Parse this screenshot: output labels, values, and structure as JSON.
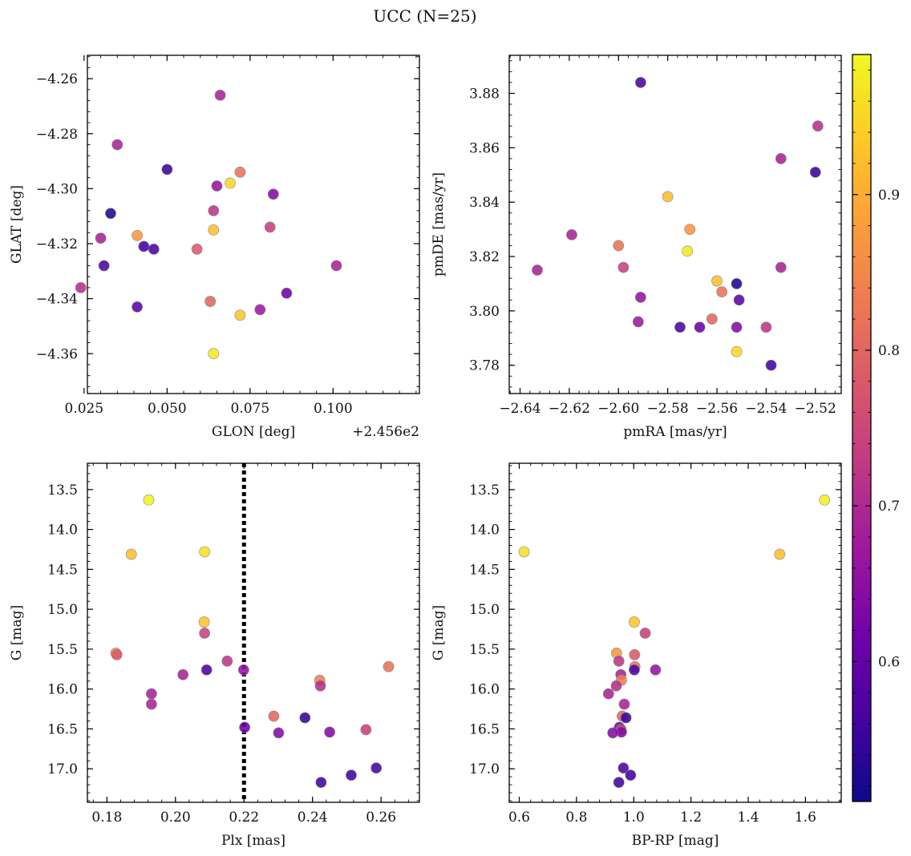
{
  "figure": {
    "title": "UCC (N=25)"
  },
  "colorbar": {
    "ticks": [
      {
        "v": 0.6,
        "label": "0.6"
      },
      {
        "v": 0.7,
        "label": "0.7"
      },
      {
        "v": 0.8,
        "label": "0.8"
      },
      {
        "v": 0.9,
        "label": "0.9"
      }
    ],
    "range": [
      0.51,
      0.99
    ]
  },
  "colors": {
    "axis": "#000000",
    "marker_edge": "#8a8a8a",
    "plx_line": "#000000",
    "cmap": [
      "#0d0887",
      "#46039f",
      "#7201a8",
      "#9c179e",
      "#bd3786",
      "#d8576b",
      "#ed7953",
      "#fb9f3a",
      "#fdca26",
      "#f0f921"
    ]
  },
  "chart_data": [
    {
      "type": "scatter",
      "name": "glon-glat",
      "xlabel": "GLON [deg]",
      "ylabel": "GLAT [deg]",
      "xlim": [
        2.456126,
        2.456226
      ],
      "ylim": [
        -4.3745,
        -4.2515
      ],
      "xticks": [
        {
          "v": 2.456125,
          "label": "0.025"
        },
        {
          "v": 2.45615,
          "label": "0.050"
        },
        {
          "v": 2.456175,
          "label": "0.075"
        },
        {
          "v": 2.4562,
          "label": "0.100"
        }
      ],
      "offset_label": "+2.456e2",
      "yticks": [
        {
          "v": -4.26,
          "label": "−4.26"
        },
        {
          "v": -4.28,
          "label": "−4.28"
        },
        {
          "v": -4.3,
          "label": "−4.30"
        },
        {
          "v": -4.32,
          "label": "−4.32"
        },
        {
          "v": -4.34,
          "label": "−4.34"
        },
        {
          "v": -4.36,
          "label": "−4.36"
        }
      ],
      "points": [
        {
          "x": 2.456166,
          "y": -4.266,
          "c": 0.69
        },
        {
          "x": 2.456135,
          "y": -4.284,
          "c": 0.69
        },
        {
          "x": 2.45615,
          "y": -4.293,
          "c": 0.55
        },
        {
          "x": 2.456172,
          "y": -4.294,
          "c": 0.82
        },
        {
          "x": 2.456169,
          "y": -4.298,
          "c": 0.95
        },
        {
          "x": 2.456165,
          "y": -4.299,
          "c": 0.66
        },
        {
          "x": 2.456182,
          "y": -4.302,
          "c": 0.64
        },
        {
          "x": 2.456164,
          "y": -4.308,
          "c": 0.72
        },
        {
          "x": 2.456133,
          "y": -4.309,
          "c": 0.53
        },
        {
          "x": 2.456164,
          "y": -4.315,
          "c": 0.92
        },
        {
          "x": 2.456181,
          "y": -4.314,
          "c": 0.74
        },
        {
          "x": 2.456141,
          "y": -4.317,
          "c": 0.87
        },
        {
          "x": 2.45613,
          "y": -4.318,
          "c": 0.69
        },
        {
          "x": 2.456143,
          "y": -4.321,
          "c": 0.56
        },
        {
          "x": 2.456146,
          "y": -4.322,
          "c": 0.57
        },
        {
          "x": 2.456159,
          "y": -4.322,
          "c": 0.78
        },
        {
          "x": 2.456201,
          "y": -4.328,
          "c": 0.69
        },
        {
          "x": 2.456131,
          "y": -4.328,
          "c": 0.57
        },
        {
          "x": 2.456124,
          "y": -4.336,
          "c": 0.71
        },
        {
          "x": 2.456186,
          "y": -4.338,
          "c": 0.61
        },
        {
          "x": 2.456163,
          "y": -4.341,
          "c": 0.8
        },
        {
          "x": 2.456141,
          "y": -4.343,
          "c": 0.59
        },
        {
          "x": 2.456178,
          "y": -4.344,
          "c": 0.67
        },
        {
          "x": 2.456172,
          "y": -4.346,
          "c": 0.93
        },
        {
          "x": 2.456164,
          "y": -4.36,
          "c": 0.97
        }
      ]
    },
    {
      "type": "scatter",
      "name": "pmra-pmde",
      "xlabel": "pmRA [mas/yr]",
      "ylabel": "pmDE [mas/yr]",
      "xlim": [
        -2.6444,
        -2.5095
      ],
      "ylim": [
        3.7696,
        3.894
      ],
      "xticks": [
        {
          "v": -2.64,
          "label": "−2.64"
        },
        {
          "v": -2.62,
          "label": "−2.62"
        },
        {
          "v": -2.6,
          "label": "−2.60"
        },
        {
          "v": -2.58,
          "label": "−2.58"
        },
        {
          "v": -2.56,
          "label": "−2.56"
        },
        {
          "v": -2.54,
          "label": "−2.54"
        },
        {
          "v": -2.52,
          "label": "−2.52"
        }
      ],
      "yticks": [
        {
          "v": 3.78,
          "label": "3.78"
        },
        {
          "v": 3.8,
          "label": "3.80"
        },
        {
          "v": 3.82,
          "label": "3.82"
        },
        {
          "v": 3.84,
          "label": "3.84"
        },
        {
          "v": 3.86,
          "label": "3.86"
        },
        {
          "v": 3.88,
          "label": "3.88"
        }
      ],
      "points": [
        {
          "x": -2.591,
          "y": 3.884,
          "c": 0.57
        },
        {
          "x": -2.519,
          "y": 3.868,
          "c": 0.71
        },
        {
          "x": -2.534,
          "y": 3.856,
          "c": 0.69
        },
        {
          "x": -2.52,
          "y": 3.851,
          "c": 0.55
        },
        {
          "x": -2.58,
          "y": 3.842,
          "c": 0.92
        },
        {
          "x": -2.571,
          "y": 3.83,
          "c": 0.87
        },
        {
          "x": -2.619,
          "y": 3.828,
          "c": 0.69
        },
        {
          "x": -2.6,
          "y": 3.824,
          "c": 0.82
        },
        {
          "x": -2.572,
          "y": 3.822,
          "c": 0.97
        },
        {
          "x": -2.598,
          "y": 3.816,
          "c": 0.74
        },
        {
          "x": -2.534,
          "y": 3.816,
          "c": 0.69
        },
        {
          "x": -2.633,
          "y": 3.815,
          "c": 0.69
        },
        {
          "x": -2.56,
          "y": 3.811,
          "c": 0.92
        },
        {
          "x": -2.552,
          "y": 3.81,
          "c": 0.53
        },
        {
          "x": -2.558,
          "y": 3.807,
          "c": 0.82
        },
        {
          "x": -2.591,
          "y": 3.805,
          "c": 0.66
        },
        {
          "x": -2.551,
          "y": 3.804,
          "c": 0.59
        },
        {
          "x": -2.562,
          "y": 3.797,
          "c": 0.8
        },
        {
          "x": -2.592,
          "y": 3.796,
          "c": 0.67
        },
        {
          "x": -2.575,
          "y": 3.794,
          "c": 0.57
        },
        {
          "x": -2.567,
          "y": 3.794,
          "c": 0.61
        },
        {
          "x": -2.552,
          "y": 3.794,
          "c": 0.64
        },
        {
          "x": -2.54,
          "y": 3.794,
          "c": 0.72
        },
        {
          "x": -2.552,
          "y": 3.785,
          "c": 0.95
        },
        {
          "x": -2.538,
          "y": 3.78,
          "c": 0.56
        }
      ]
    },
    {
      "type": "scatter",
      "name": "plx-g",
      "xlabel": "Plx [mas]",
      "ylabel": "G [mag]",
      "xlim": [
        0.1743,
        0.2712
      ],
      "ylim": [
        17.42,
        13.17
      ],
      "y_inverted": true,
      "vline": 0.22,
      "xticks": [
        {
          "v": 0.18,
          "label": "0.18"
        },
        {
          "v": 0.2,
          "label": "0.20"
        },
        {
          "v": 0.22,
          "label": "0.22"
        },
        {
          "v": 0.24,
          "label": "0.24"
        },
        {
          "v": 0.26,
          "label": "0.26"
        }
      ],
      "yticks": [
        {
          "v": 13.5,
          "label": "13.5"
        },
        {
          "v": 14.0,
          "label": "14.0"
        },
        {
          "v": 14.5,
          "label": "14.5"
        },
        {
          "v": 15.0,
          "label": "15.0"
        },
        {
          "v": 15.5,
          "label": "15.5"
        },
        {
          "v": 16.0,
          "label": "16.0"
        },
        {
          "v": 16.5,
          "label": "16.5"
        },
        {
          "v": 17.0,
          "label": "17.0"
        }
      ],
      "points": [
        {
          "x": 0.1922,
          "y": 13.63,
          "c": 0.98
        },
        {
          "x": 0.1871,
          "y": 14.31,
          "c": 0.92
        },
        {
          "x": 0.2085,
          "y": 14.28,
          "c": 0.96
        },
        {
          "x": 0.2084,
          "y": 15.16,
          "c": 0.93
        },
        {
          "x": 0.2085,
          "y": 15.3,
          "c": 0.74
        },
        {
          "x": 0.1826,
          "y": 15.55,
          "c": 0.87
        },
        {
          "x": 0.1829,
          "y": 15.57,
          "c": 0.78
        },
        {
          "x": 0.2151,
          "y": 15.65,
          "c": 0.72
        },
        {
          "x": 0.2091,
          "y": 15.76,
          "c": 0.57
        },
        {
          "x": 0.2199,
          "y": 15.76,
          "c": 0.66
        },
        {
          "x": 0.2022,
          "y": 15.82,
          "c": 0.69
        },
        {
          "x": 0.2622,
          "y": 15.72,
          "c": 0.82
        },
        {
          "x": 0.2421,
          "y": 15.89,
          "c": 0.84
        },
        {
          "x": 0.2423,
          "y": 15.96,
          "c": 0.71
        },
        {
          "x": 0.193,
          "y": 16.06,
          "c": 0.69
        },
        {
          "x": 0.193,
          "y": 16.19,
          "c": 0.69
        },
        {
          "x": 0.2287,
          "y": 16.34,
          "c": 0.8
        },
        {
          "x": 0.2378,
          "y": 16.36,
          "c": 0.55
        },
        {
          "x": 0.2202,
          "y": 16.48,
          "c": 0.61
        },
        {
          "x": 0.2301,
          "y": 16.55,
          "c": 0.64
        },
        {
          "x": 0.245,
          "y": 16.54,
          "c": 0.64
        },
        {
          "x": 0.2556,
          "y": 16.51,
          "c": 0.74
        },
        {
          "x": 0.2586,
          "y": 16.99,
          "c": 0.57
        },
        {
          "x": 0.2513,
          "y": 17.08,
          "c": 0.56
        },
        {
          "x": 0.2425,
          "y": 17.17,
          "c": 0.56
        }
      ]
    },
    {
      "type": "scatter",
      "name": "bprp-g",
      "xlabel": "BP-RP [mag]",
      "ylabel": "G [mag]",
      "xlim": [
        0.565,
        1.725
      ],
      "ylim": [
        17.42,
        13.17
      ],
      "y_inverted": true,
      "xticks": [
        {
          "v": 0.6,
          "label": "0.6"
        },
        {
          "v": 0.8,
          "label": "0.8"
        },
        {
          "v": 1.0,
          "label": "1.0"
        },
        {
          "v": 1.2,
          "label": "1.2"
        },
        {
          "v": 1.4,
          "label": "1.4"
        },
        {
          "v": 1.6,
          "label": "1.6"
        }
      ],
      "yticks": [
        {
          "v": 13.5,
          "label": "13.5"
        },
        {
          "v": 14.0,
          "label": "14.0"
        },
        {
          "v": 14.5,
          "label": "14.5"
        },
        {
          "v": 15.0,
          "label": "15.0"
        },
        {
          "v": 15.5,
          "label": "15.5"
        },
        {
          "v": 16.0,
          "label": "16.0"
        },
        {
          "v": 16.5,
          "label": "16.5"
        },
        {
          "v": 17.0,
          "label": "17.0"
        }
      ],
      "points": [
        {
          "x": 1.667,
          "y": 13.63,
          "c": 0.98
        },
        {
          "x": 0.617,
          "y": 14.28,
          "c": 0.96
        },
        {
          "x": 1.51,
          "y": 14.31,
          "c": 0.92
        },
        {
          "x": 1.002,
          "y": 15.16,
          "c": 0.93
        },
        {
          "x": 1.04,
          "y": 15.3,
          "c": 0.74
        },
        {
          "x": 0.94,
          "y": 15.55,
          "c": 0.87
        },
        {
          "x": 1.003,
          "y": 15.57,
          "c": 0.78
        },
        {
          "x": 0.948,
          "y": 15.65,
          "c": 0.72
        },
        {
          "x": 1.004,
          "y": 15.72,
          "c": 0.82
        },
        {
          "x": 1.002,
          "y": 15.76,
          "c": 0.57
        },
        {
          "x": 1.076,
          "y": 15.76,
          "c": 0.66
        },
        {
          "x": 0.955,
          "y": 15.82,
          "c": 0.69
        },
        {
          "x": 0.957,
          "y": 15.89,
          "c": 0.84
        },
        {
          "x": 0.939,
          "y": 15.96,
          "c": 0.71
        },
        {
          "x": 0.912,
          "y": 16.06,
          "c": 0.69
        },
        {
          "x": 0.967,
          "y": 16.19,
          "c": 0.69
        },
        {
          "x": 0.96,
          "y": 16.34,
          "c": 0.8
        },
        {
          "x": 0.973,
          "y": 16.36,
          "c": 0.55
        },
        {
          "x": 0.95,
          "y": 16.48,
          "c": 0.61
        },
        {
          "x": 0.956,
          "y": 16.51,
          "c": 0.74
        },
        {
          "x": 0.957,
          "y": 16.54,
          "c": 0.64
        },
        {
          "x": 0.927,
          "y": 16.55,
          "c": 0.64
        },
        {
          "x": 0.964,
          "y": 16.99,
          "c": 0.57
        },
        {
          "x": 0.989,
          "y": 17.08,
          "c": 0.56
        },
        {
          "x": 0.948,
          "y": 17.17,
          "c": 0.56
        }
      ]
    }
  ]
}
